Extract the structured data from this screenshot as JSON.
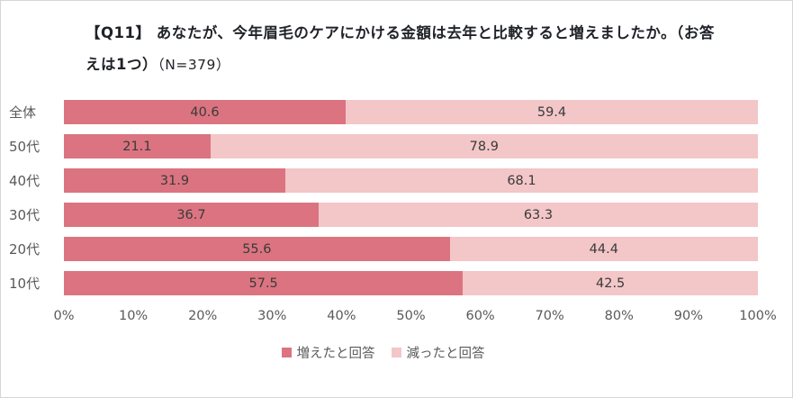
{
  "chart_data": {
    "type": "bar",
    "orientation": "horizontal",
    "stacked": true,
    "title_main": "【Q11】 あなたが、今年眉毛のケアにかける金額は去年と比較すると増えましたか。（お答えは1つ）",
    "title_note": "（N=379）",
    "categories": [
      "全体",
      "50代",
      "40代",
      "30代",
      "20代",
      "10代"
    ],
    "series": [
      {
        "name": "増えたと回答",
        "color": "#db7480",
        "values": [
          40.6,
          21.1,
          31.9,
          36.7,
          55.6,
          57.5
        ]
      },
      {
        "name": "減ったと回答",
        "color": "#f3c6c8",
        "values": [
          59.4,
          78.9,
          68.1,
          63.3,
          44.4,
          42.5
        ]
      }
    ],
    "x_ticks": [
      "0%",
      "10%",
      "20%",
      "30%",
      "40%",
      "50%",
      "60%",
      "70%",
      "80%",
      "90%",
      "100%"
    ],
    "xlim": [
      0,
      100
    ],
    "grid": false,
    "legend_position": "bottom"
  }
}
